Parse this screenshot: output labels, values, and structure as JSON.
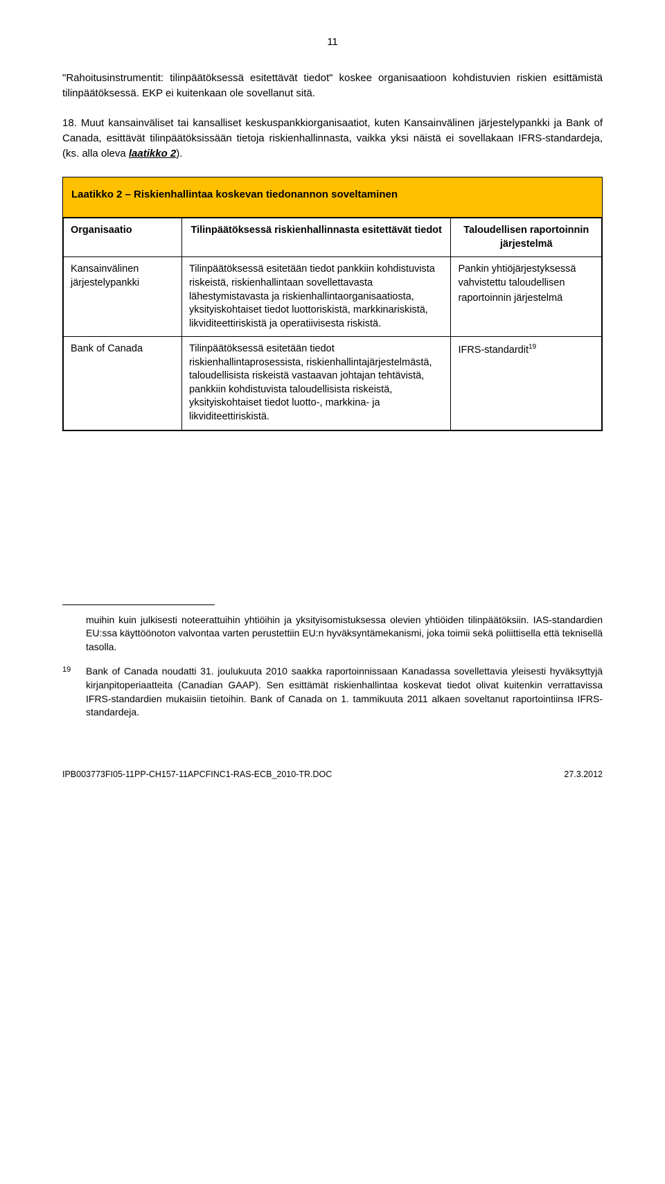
{
  "page_number": "11",
  "paragraph1": "\"Rahoitusinstrumentit: tilinpäätöksessä esitettävät tiedot\" koskee organisaatioon kohdistuvien riskien esittämistä tilinpäätöksessä. EKP ei kuitenkaan ole sovellanut sitä.",
  "paragraph2_prefix": "18. Muut kansainväliset tai kansalliset keskuspankkiorganisaatiot, kuten Kansainvälinen järjestelypankki ja Bank of Canada, esittävät tilinpäätöksissään tietoja riskienhallinnasta, vaikka yksi näistä ei sovellakaan IFRS-standardeja, (ks. alla oleva ",
  "paragraph2_link": "laatikko 2",
  "paragraph2_suffix": ").",
  "table": {
    "title": "Laatikko 2 – Riskienhallintaa koskevan tiedonannon soveltaminen",
    "header_bg": "#ffc000",
    "border_color": "#000000",
    "columns": {
      "c1": "Organisaatio",
      "c2": "Tilinpäätöksessä riskienhallinnasta esitettävät tiedot",
      "c3": "Taloudellisen raportoinnin järjestelmä"
    },
    "rows": [
      {
        "org": "Kansainvälinen järjestelypankki",
        "disc": "Tilinpäätöksessä esitetään tiedot pankkiin kohdistuvista riskeistä, riskienhallintaan sovellettavasta lähestymistavasta ja riskienhallintaorganisaatiosta, yksityiskohtaiset tiedot luottoriskistä, markkinariskistä, likviditeettiriskistä ja operatiivisesta riskistä.",
        "sys": "Pankin yhtiöjärjestyksessä vahvistettu taloudellisen raportoinnin järjestelmä",
        "sys_sup": ""
      },
      {
        "org": "Bank of Canada",
        "disc": "Tilinpäätöksessä esitetään tiedot riskienhallintaprosessista, riskienhallintajärjestelmästä, taloudellisista riskeistä vastaavan johtajan tehtävistä, pankkiin kohdistuvista taloudellisista riskeistä, yksityiskohtaiset tiedot luotto-, markkina- ja likviditeettiriskistä.",
        "sys": "IFRS-standardit",
        "sys_sup": "19"
      }
    ]
  },
  "footnotes": {
    "continuation": "muihin kuin julkisesti noteerattuihin yhtiöihin ja yksityisomistuksessa olevien yhtiöiden tilinpäätöksiin. IAS-standardien EU:ssa käyttöönoton valvontaa varten perustettiin EU:n hyväksyntämekanismi, joka toimii sekä poliittisella että teknisellä tasolla.",
    "fn19_mark": "19",
    "fn19_body": "Bank of Canada noudatti 31. joulukuuta 2010 saakka raportoinnissaan Kanadassa sovellettavia yleisesti hyväksyttyjä kirjanpitoperiaatteita (Canadian GAAP). Sen esittämät riskienhallintaa koskevat tiedot olivat kuitenkin verrattavissa IFRS-standardien mukaisiin tietoihin. Bank of Canada on 1. tammikuuta 2011 alkaen soveltanut raportointiinsa IFRS-standardeja."
  },
  "footer": {
    "docid": "IPB003773FI05-11PP-CH157-11APCFINC1-RAS-ECB_2010-TR.DOC",
    "date": "27.3.2012"
  }
}
